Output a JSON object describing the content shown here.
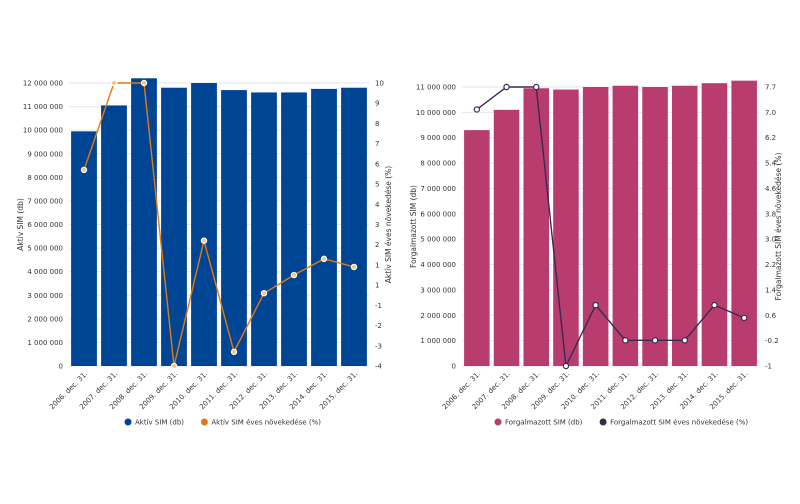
{
  "chart_data": [
    {
      "type": "bar+line",
      "categories": [
        "2006. dec. 31.",
        "2007. dec. 31.",
        "2008. dec. 31.",
        "2009. dec. 31.",
        "2010. dec. 31.",
        "2011. dec. 31.",
        "2012. dec. 31.",
        "2013. dec. 31.",
        "2014. dec. 31.",
        "2015. dec. 31."
      ],
      "series": [
        {
          "name": "Aktív SIM (db)",
          "type": "bar",
          "axis": "left",
          "color": "#004494",
          "values": [
            9950000,
            11050000,
            12200000,
            11800000,
            12000000,
            11700000,
            11600000,
            11600000,
            11750000,
            11800000
          ]
        },
        {
          "name": "Aktív SIM éves növekedése (%)",
          "type": "line",
          "axis": "right",
          "color": "#e07b10",
          "values": [
            5.7,
            10.0,
            10.0,
            -4.0,
            2.2,
            -3.3,
            -0.4,
            0.5,
            1.3,
            0.9
          ]
        }
      ],
      "ylabel": "Aktív SIM (db)",
      "y2label": "Aktív SIM éves növekedése (%)",
      "ylim": [
        0,
        12000000
      ],
      "y2lim": [
        -4,
        10
      ],
      "yticks": [
        "0",
        "1 000 000",
        "2 000 000",
        "3 000 000",
        "4 000 000",
        "5 000 000",
        "6 000 000",
        "7 000 000",
        "8 000 000",
        "9 000 000",
        "10 000 000",
        "11 000 000",
        "12 000 000"
      ],
      "y2ticks": [
        "-4",
        "-3",
        "-2",
        "-1",
        "1",
        "1",
        "2",
        "3",
        "4",
        "5",
        "6",
        "7",
        "8",
        "9",
        "10"
      ],
      "grid": true,
      "legend": "bottom"
    },
    {
      "type": "bar+line",
      "categories": [
        "2006. dec. 31.",
        "2007. dec. 31.",
        "2008. dec. 31.",
        "2009. dec. 31.",
        "2010. dec. 31.",
        "2011. dec. 31.",
        "2012. dec. 31.",
        "2013. dec. 31.",
        "2014. dec. 31.",
        "2015. dec. 31."
      ],
      "series": [
        {
          "name": "Forgalmazott SIM (db)",
          "type": "bar",
          "axis": "left",
          "color": "#b83d6e",
          "values": [
            9300000,
            10100000,
            10950000,
            10900000,
            11000000,
            11050000,
            11000000,
            11050000,
            11150000,
            11250000
          ]
        },
        {
          "name": "Forgalmazott SIM éves növekedése (%)",
          "type": "line",
          "axis": "right",
          "color": "#3a2a50",
          "values": [
            7.0,
            7.7,
            7.7,
            -1.0,
            0.9,
            -0.2,
            -0.2,
            -0.2,
            0.9,
            0.5
          ]
        }
      ],
      "ylabel": "Forgalmazott SIM (db)",
      "y2label": "Forgalmazott SIM éves növekedése (%)",
      "ylim": [
        0,
        11000000
      ],
      "y2lim": [
        -1,
        7.7
      ],
      "yticks": [
        "0",
        "1 000 000",
        "2 000 000",
        "3 000 000",
        "4 000 000",
        "5 000 000",
        "6 000 000",
        "7 000 000",
        "8 000 000",
        "9 000 000",
        "10 000 000",
        "11 000 000"
      ],
      "y2ticks": [
        "-1",
        "-0.2",
        "0.6",
        "1.4",
        "2.2",
        "3.0",
        "3.8",
        "4.6",
        "5.4",
        "6.2",
        "7.0",
        "7.7"
      ],
      "grid": true,
      "legend": "bottom"
    }
  ]
}
